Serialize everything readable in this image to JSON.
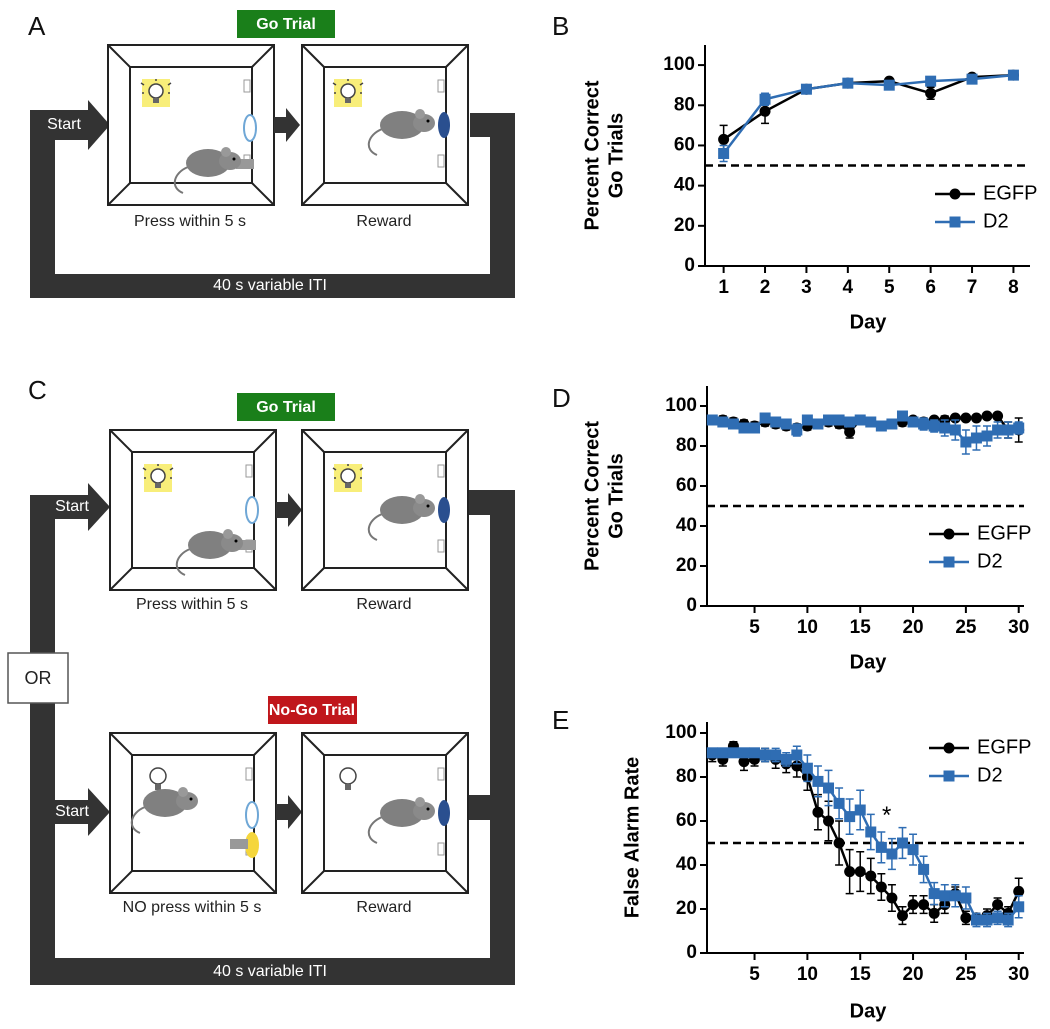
{
  "panel_labels": [
    "A",
    "B",
    "C",
    "D",
    "E"
  ],
  "diagram_a": {
    "trial_label": "Go Trial",
    "start": "Start",
    "box_labels": [
      "Press within 5 s",
      "Reward"
    ],
    "loop_label": "40 s variable ITI"
  },
  "diagram_c": {
    "go_label": "Go Trial",
    "nogo_label": "No-Go Trial",
    "or": "OR",
    "starts": [
      "Start",
      "Start"
    ],
    "go_box_labels": [
      "Press within 5 s",
      "Reward"
    ],
    "nogo_box_labels": [
      "NO press within 5 s",
      "Reward"
    ],
    "loop_label": "40 s variable ITI"
  },
  "chart_data": [
    {
      "type": "line",
      "ylabel": [
        "Percent Correct",
        "Go Trials"
      ],
      "xlabel": "Day",
      "x": [
        1,
        2,
        3,
        4,
        5,
        6,
        7,
        8
      ],
      "xlim": [
        0.55,
        8.4
      ],
      "xticks": [
        1,
        2,
        3,
        4,
        5,
        6,
        7,
        8
      ],
      "ylim": [
        0,
        110
      ],
      "yticks": [
        0,
        20,
        40,
        60,
        80,
        100
      ],
      "hline": 50,
      "legend_position": "lower right",
      "series": [
        {
          "name": "EGFP",
          "color": "#000000",
          "marker": "circle",
          "values": [
            63,
            77,
            88,
            91,
            92,
            86,
            94,
            95
          ],
          "errors": [
            7,
            6,
            2,
            1,
            1,
            3,
            1,
            1
          ]
        },
        {
          "name": "D2",
          "color": "#2f6db3",
          "marker": "square",
          "values": [
            56,
            83,
            88,
            91,
            90,
            92,
            93,
            95
          ],
          "errors": [
            4,
            3,
            2,
            1,
            2,
            1,
            1,
            1
          ]
        }
      ]
    },
    {
      "type": "line",
      "ylabel": [
        "Percent Correct",
        "Go Trials"
      ],
      "xlabel": "Day",
      "x": [
        1,
        2,
        3,
        4,
        5,
        6,
        7,
        8,
        9,
        10,
        11,
        12,
        13,
        14,
        15,
        16,
        17,
        18,
        19,
        20,
        21,
        22,
        23,
        24,
        25,
        26,
        27,
        28,
        29,
        30
      ],
      "xlim": [
        0.5,
        30.5
      ],
      "xticks": [
        5,
        10,
        15,
        20,
        25,
        30
      ],
      "ylim": [
        0,
        110
      ],
      "yticks": [
        0,
        20,
        40,
        60,
        80,
        100
      ],
      "hline": 50,
      "legend_position": "lower right",
      "series": [
        {
          "name": "EGFP",
          "color": "#000000",
          "marker": "circle",
          "values": [
            93,
            93,
            92,
            91,
            90,
            92,
            91,
            90,
            89,
            90,
            91,
            92,
            91,
            87,
            93,
            92,
            90,
            91,
            92,
            93,
            92,
            93,
            93,
            94,
            94,
            94,
            95,
            95,
            88,
            88
          ],
          "errors": [
            2,
            2,
            2,
            2,
            2,
            2,
            2,
            2,
            2,
            2,
            2,
            2,
            2,
            3,
            1,
            2,
            2,
            2,
            2,
            1,
            2,
            1,
            2,
            1,
            1,
            1,
            1,
            1,
            4,
            6
          ]
        },
        {
          "name": "D2",
          "color": "#2f6db3",
          "marker": "square",
          "values": [
            93,
            92,
            91,
            89,
            89,
            94,
            92,
            91,
            88,
            93,
            91,
            93,
            93,
            92,
            93,
            92,
            90,
            91,
            95,
            92,
            91,
            90,
            89,
            88,
            82,
            84,
            85,
            88,
            88,
            89
          ],
          "errors": [
            2,
            2,
            2,
            2,
            2,
            2,
            2,
            2,
            3,
            2,
            2,
            2,
            2,
            2,
            2,
            2,
            2,
            2,
            2,
            2,
            3,
            3,
            4,
            5,
            6,
            6,
            5,
            4,
            4,
            3
          ]
        }
      ]
    },
    {
      "type": "line",
      "ylabel": [
        "False Alarm Rate"
      ],
      "xlabel": "Day",
      "x": [
        1,
        2,
        3,
        4,
        5,
        6,
        7,
        8,
        9,
        10,
        11,
        12,
        13,
        14,
        15,
        16,
        17,
        18,
        19,
        20,
        21,
        22,
        23,
        24,
        25,
        26,
        27,
        28,
        29,
        30
      ],
      "xlim": [
        0.5,
        30.5
      ],
      "xticks": [
        5,
        10,
        15,
        20,
        25,
        30
      ],
      "ylim": [
        0,
        105
      ],
      "yticks": [
        0,
        20,
        40,
        60,
        80,
        100
      ],
      "hline": 50,
      "legend_position": "upper right",
      "annotations": [
        {
          "text": "*",
          "x": 17.5,
          "y": 62
        }
      ],
      "series": [
        {
          "name": "EGFP",
          "color": "#000000",
          "marker": "circle",
          "values": [
            90,
            88,
            94,
            87,
            88,
            90,
            88,
            86,
            85,
            80,
            64,
            60,
            50,
            37,
            37,
            35,
            30,
            25,
            17,
            22,
            22,
            18,
            22,
            27,
            16,
            16,
            17,
            22,
            18,
            28
          ],
          "errors": [
            3,
            3,
            2,
            4,
            3,
            3,
            4,
            4,
            5,
            6,
            8,
            9,
            10,
            10,
            9,
            8,
            6,
            6,
            4,
            4,
            4,
            4,
            4,
            3,
            3,
            2,
            3,
            3,
            3,
            6
          ]
        },
        {
          "name": "D2",
          "color": "#2f6db3",
          "marker": "square",
          "values": [
            91,
            91,
            91,
            91,
            91,
            90,
            90,
            88,
            90,
            84,
            78,
            75,
            68,
            62,
            65,
            55,
            48,
            45,
            50,
            47,
            38,
            27,
            26,
            26,
            25,
            15,
            15,
            16,
            15,
            21
          ],
          "errors": [
            2,
            2,
            2,
            2,
            2,
            3,
            3,
            3,
            4,
            6,
            7,
            8,
            7,
            8,
            9,
            8,
            7,
            7,
            7,
            7,
            6,
            5,
            5,
            5,
            5,
            3,
            3,
            3,
            3,
            5
          ]
        }
      ]
    }
  ]
}
